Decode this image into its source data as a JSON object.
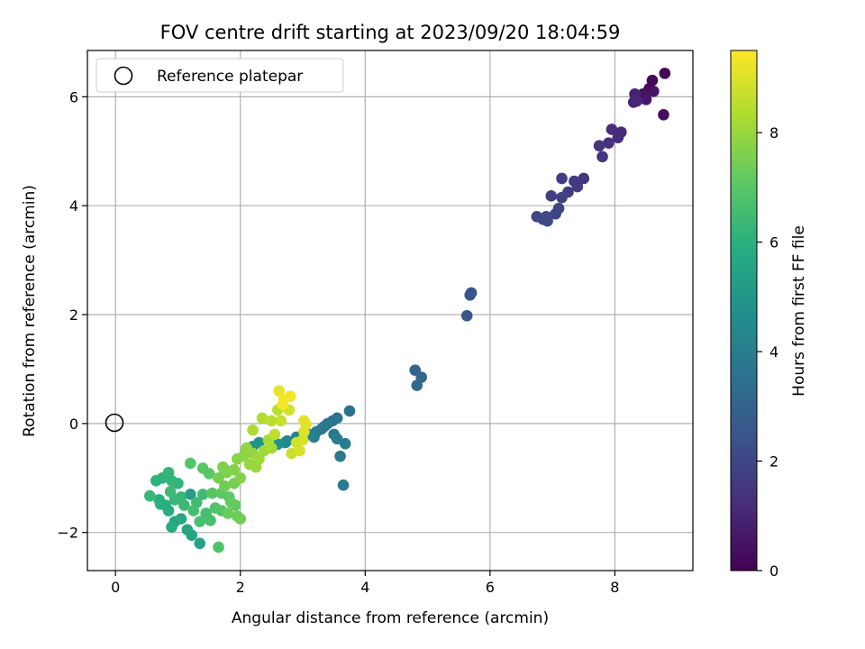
{
  "chart_data": {
    "type": "scatter",
    "title": "FOV centre drift starting at 2023/09/20 18:04:59",
    "xlabel": "Angular distance from reference (arcmin)",
    "ylabel": "Rotation from reference (arcmin)",
    "xlim": [
      -0.45,
      9.25
    ],
    "ylim": [
      -2.7,
      6.85
    ],
    "xticks": [
      "0",
      "2",
      "4",
      "6",
      "8"
    ],
    "xtick_values": [
      0,
      2,
      4,
      6,
      8
    ],
    "yticks": [
      "−2",
      "0",
      "2",
      "4",
      "6"
    ],
    "ytick_values": [
      -2,
      0,
      2,
      4,
      6
    ],
    "grid": true,
    "legend": {
      "placement": "top-left",
      "label": "Reference platepar"
    },
    "reference_point": {
      "x": 0,
      "y": 0
    },
    "colorbar": {
      "label": "Hours from first FF file",
      "colormap": "viridis",
      "range": [
        0,
        9.5
      ],
      "ticks": [
        "0",
        "2",
        "4",
        "6",
        "8"
      ],
      "tick_values": [
        0,
        2,
        4,
        6,
        8
      ]
    },
    "points": [
      {
        "x": 8.8,
        "y": 6.43,
        "h": 0.1
      },
      {
        "x": 8.6,
        "y": 6.3,
        "h": 0.2
      },
      {
        "x": 8.55,
        "y": 6.15,
        "h": 0.3
      },
      {
        "x": 8.45,
        "y": 6.05,
        "h": 0.4
      },
      {
        "x": 8.62,
        "y": 6.1,
        "h": 0.5
      },
      {
        "x": 8.5,
        "y": 5.95,
        "h": 0.6
      },
      {
        "x": 8.78,
        "y": 5.67,
        "h": 0.3
      },
      {
        "x": 8.32,
        "y": 6.05,
        "h": 0.9
      },
      {
        "x": 8.3,
        "y": 5.9,
        "h": 1.0
      },
      {
        "x": 8.35,
        "y": 5.92,
        "h": 1.0
      },
      {
        "x": 8.1,
        "y": 5.35,
        "h": 1.1
      },
      {
        "x": 7.95,
        "y": 5.4,
        "h": 1.2
      },
      {
        "x": 8.05,
        "y": 5.25,
        "h": 1.2
      },
      {
        "x": 7.9,
        "y": 5.15,
        "h": 1.3
      },
      {
        "x": 7.75,
        "y": 5.1,
        "h": 1.4
      },
      {
        "x": 7.8,
        "y": 4.9,
        "h": 1.4
      },
      {
        "x": 7.5,
        "y": 4.5,
        "h": 1.5
      },
      {
        "x": 7.35,
        "y": 4.45,
        "h": 1.6
      },
      {
        "x": 7.4,
        "y": 4.35,
        "h": 1.6
      },
      {
        "x": 7.25,
        "y": 4.25,
        "h": 1.7
      },
      {
        "x": 7.15,
        "y": 4.5,
        "h": 1.7
      },
      {
        "x": 7.15,
        "y": 4.15,
        "h": 1.8
      },
      {
        "x": 6.98,
        "y": 4.18,
        "h": 1.8
      },
      {
        "x": 7.1,
        "y": 3.95,
        "h": 1.9
      },
      {
        "x": 7.05,
        "y": 3.85,
        "h": 1.9
      },
      {
        "x": 6.9,
        "y": 3.8,
        "h": 2.0
      },
      {
        "x": 6.75,
        "y": 3.8,
        "h": 2.0
      },
      {
        "x": 6.85,
        "y": 3.75,
        "h": 2.1
      },
      {
        "x": 6.92,
        "y": 3.72,
        "h": 2.1
      },
      {
        "x": 5.7,
        "y": 2.4,
        "h": 2.4
      },
      {
        "x": 5.68,
        "y": 2.36,
        "h": 2.5
      },
      {
        "x": 5.63,
        "y": 1.98,
        "h": 2.6
      },
      {
        "x": 4.8,
        "y": 0.98,
        "h": 3.0
      },
      {
        "x": 4.9,
        "y": 0.85,
        "h": 3.1
      },
      {
        "x": 4.83,
        "y": 0.7,
        "h": 3.2
      },
      {
        "x": 3.75,
        "y": 0.23,
        "h": 3.5
      },
      {
        "x": 3.55,
        "y": 0.1,
        "h": 3.6
      },
      {
        "x": 3.48,
        "y": 0.05,
        "h": 3.7
      },
      {
        "x": 3.4,
        "y": 0.0,
        "h": 3.7
      },
      {
        "x": 3.35,
        "y": -0.05,
        "h": 3.8
      },
      {
        "x": 3.3,
        "y": -0.1,
        "h": 3.8
      },
      {
        "x": 3.22,
        "y": -0.15,
        "h": 3.9
      },
      {
        "x": 3.5,
        "y": -0.2,
        "h": 3.8
      },
      {
        "x": 3.55,
        "y": -0.28,
        "h": 3.9
      },
      {
        "x": 3.68,
        "y": -0.37,
        "h": 3.9
      },
      {
        "x": 3.6,
        "y": -0.6,
        "h": 3.8
      },
      {
        "x": 3.65,
        "y": -1.13,
        "h": 3.9
      },
      {
        "x": 3.18,
        "y": -0.25,
        "h": 4.0
      },
      {
        "x": 3.1,
        "y": -0.2,
        "h": 4.2
      },
      {
        "x": 2.9,
        "y": -0.25,
        "h": 4.3
      },
      {
        "x": 2.75,
        "y": -0.32,
        "h": 4.4
      },
      {
        "x": 2.72,
        "y": -0.35,
        "h": 4.5
      },
      {
        "x": 2.6,
        "y": -0.38,
        "h": 4.7
      },
      {
        "x": 2.3,
        "y": -0.35,
        "h": 4.8
      },
      {
        "x": 2.2,
        "y": -0.42,
        "h": 5.0
      },
      {
        "x": 2.1,
        "y": -0.5,
        "h": 5.2
      },
      {
        "x": 1.75,
        "y": -0.85,
        "h": 5.2
      },
      {
        "x": 1.2,
        "y": -1.3,
        "h": 5.3
      },
      {
        "x": 1.35,
        "y": -2.2,
        "h": 5.4
      },
      {
        "x": 1.22,
        "y": -2.05,
        "h": 5.5
      },
      {
        "x": 1.15,
        "y": -1.95,
        "h": 5.6
      },
      {
        "x": 1.05,
        "y": -1.75,
        "h": 5.6
      },
      {
        "x": 0.95,
        "y": -1.8,
        "h": 5.7
      },
      {
        "x": 0.9,
        "y": -1.9,
        "h": 5.8
      },
      {
        "x": 0.85,
        "y": -1.6,
        "h": 5.8
      },
      {
        "x": 0.8,
        "y": -1.5,
        "h": 5.9
      },
      {
        "x": 0.72,
        "y": -1.48,
        "h": 6.0
      },
      {
        "x": 0.7,
        "y": -1.4,
        "h": 6.0
      },
      {
        "x": 0.65,
        "y": -1.05,
        "h": 6.1
      },
      {
        "x": 0.75,
        "y": -1.0,
        "h": 6.1
      },
      {
        "x": 0.85,
        "y": -0.9,
        "h": 6.2
      },
      {
        "x": 0.9,
        "y": -1.05,
        "h": 6.2
      },
      {
        "x": 1.0,
        "y": -1.1,
        "h": 6.2
      },
      {
        "x": 0.55,
        "y": -1.33,
        "h": 6.3
      },
      {
        "x": 0.95,
        "y": -1.4,
        "h": 6.3
      },
      {
        "x": 1.05,
        "y": -1.35,
        "h": 6.3
      },
      {
        "x": 0.88,
        "y": -1.25,
        "h": 6.4
      },
      {
        "x": 1.1,
        "y": -1.5,
        "h": 6.4
      },
      {
        "x": 1.3,
        "y": -1.45,
        "h": 6.5
      },
      {
        "x": 1.4,
        "y": -1.3,
        "h": 6.5
      },
      {
        "x": 1.25,
        "y": -1.6,
        "h": 6.6
      },
      {
        "x": 1.45,
        "y": -1.65,
        "h": 6.6
      },
      {
        "x": 1.35,
        "y": -1.8,
        "h": 6.7
      },
      {
        "x": 1.52,
        "y": -1.78,
        "h": 6.7
      },
      {
        "x": 1.65,
        "y": -2.27,
        "h": 6.8
      },
      {
        "x": 1.6,
        "y": -1.55,
        "h": 6.8
      },
      {
        "x": 1.7,
        "y": -1.6,
        "h": 6.9
      },
      {
        "x": 1.2,
        "y": -0.73,
        "h": 6.9
      },
      {
        "x": 1.4,
        "y": -0.82,
        "h": 7.0
      },
      {
        "x": 1.5,
        "y": -0.92,
        "h": 7.0
      },
      {
        "x": 1.55,
        "y": -1.28,
        "h": 7.0
      },
      {
        "x": 1.7,
        "y": -1.28,
        "h": 7.1
      },
      {
        "x": 1.82,
        "y": -1.35,
        "h": 7.1
      },
      {
        "x": 1.85,
        "y": -1.45,
        "h": 7.2
      },
      {
        "x": 1.92,
        "y": -1.5,
        "h": 7.2
      },
      {
        "x": 1.8,
        "y": -1.65,
        "h": 7.3
      },
      {
        "x": 1.95,
        "y": -1.7,
        "h": 7.3
      },
      {
        "x": 2.0,
        "y": -1.75,
        "h": 7.4
      },
      {
        "x": 1.75,
        "y": -1.15,
        "h": 7.4
      },
      {
        "x": 1.9,
        "y": -1.1,
        "h": 7.5
      },
      {
        "x": 1.65,
        "y": -1.0,
        "h": 7.5
      },
      {
        "x": 1.78,
        "y": -0.9,
        "h": 7.6
      },
      {
        "x": 1.72,
        "y": -0.8,
        "h": 7.6
      },
      {
        "x": 1.9,
        "y": -0.85,
        "h": 7.7
      },
      {
        "x": 2.0,
        "y": -1.0,
        "h": 7.7
      },
      {
        "x": 1.95,
        "y": -0.65,
        "h": 7.8
      },
      {
        "x": 2.05,
        "y": -0.6,
        "h": 7.8
      },
      {
        "x": 2.1,
        "y": -0.45,
        "h": 7.9
      },
      {
        "x": 2.2,
        "y": -0.55,
        "h": 7.9
      },
      {
        "x": 2.15,
        "y": -0.75,
        "h": 8.0
      },
      {
        "x": 2.25,
        "y": -0.8,
        "h": 8.0
      },
      {
        "x": 2.3,
        "y": -0.65,
        "h": 8.1
      },
      {
        "x": 2.38,
        "y": -0.5,
        "h": 8.1
      },
      {
        "x": 2.5,
        "y": -0.45,
        "h": 8.2
      },
      {
        "x": 2.45,
        "y": -0.3,
        "h": 8.3
      },
      {
        "x": 2.2,
        "y": -0.12,
        "h": 8.3
      },
      {
        "x": 2.35,
        "y": 0.1,
        "h": 8.4
      },
      {
        "x": 2.6,
        "y": 0.25,
        "h": 8.5
      },
      {
        "x": 2.5,
        "y": 0.05,
        "h": 8.5
      },
      {
        "x": 2.55,
        "y": -0.2,
        "h": 8.6
      },
      {
        "x": 2.65,
        "y": 0.05,
        "h": 8.7
      },
      {
        "x": 2.78,
        "y": 0.25,
        "h": 8.8
      },
      {
        "x": 2.82,
        "y": -0.55,
        "h": 8.7
      },
      {
        "x": 2.9,
        "y": -0.35,
        "h": 8.8
      },
      {
        "x": 2.95,
        "y": -0.5,
        "h": 8.9
      },
      {
        "x": 3.0,
        "y": -0.3,
        "h": 8.9
      },
      {
        "x": 3.02,
        "y": -0.15,
        "h": 9.0
      },
      {
        "x": 3.05,
        "y": -0.02,
        "h": 9.1
      },
      {
        "x": 3.02,
        "y": 0.05,
        "h": 9.1
      },
      {
        "x": 2.62,
        "y": 0.6,
        "h": 9.2
      },
      {
        "x": 2.7,
        "y": 0.45,
        "h": 9.3
      },
      {
        "x": 2.8,
        "y": 0.5,
        "h": 9.3
      },
      {
        "x": 2.68,
        "y": 0.35,
        "h": 9.4
      }
    ]
  }
}
